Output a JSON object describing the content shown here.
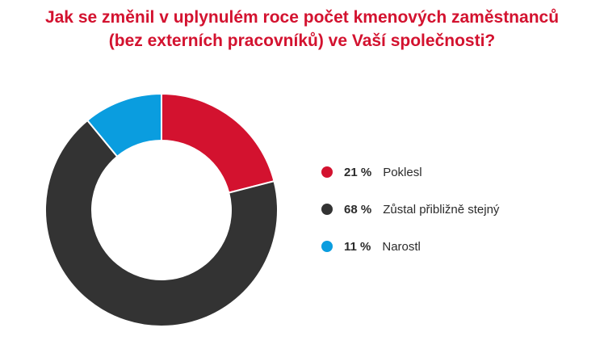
{
  "title": {
    "line1": "Jak se změnil v uplynulém roce počet kmenových zaměstnanců",
    "line2": "(bez externích pracovníků) ve Vaší společnosti?"
  },
  "chart_data": {
    "type": "pie",
    "variant": "donut",
    "title": "Jak se změnil v uplynulém roce počet kmenových zaměstnanců (bez externích pracovníků) ve Vaší společnosti?",
    "categories": [
      "Poklesl",
      "Zůstal přibližně stejný",
      "Narostl"
    ],
    "values": [
      21,
      68,
      11
    ],
    "labels": [
      "21 %",
      "68 %",
      "11 %"
    ],
    "colors": [
      "#d3122f",
      "#333333",
      "#0a9ddf"
    ],
    "legend_position": "right",
    "start": "top",
    "direction": "clockwise"
  },
  "legend": [
    {
      "pct": "21 %",
      "label": "Poklesl",
      "color": "#d3122f"
    },
    {
      "pct": "68 %",
      "label": "Zůstal přibližně stejný",
      "color": "#333333"
    },
    {
      "pct": "11 %",
      "label": "Narostl",
      "color": "#0a9ddf"
    }
  ]
}
